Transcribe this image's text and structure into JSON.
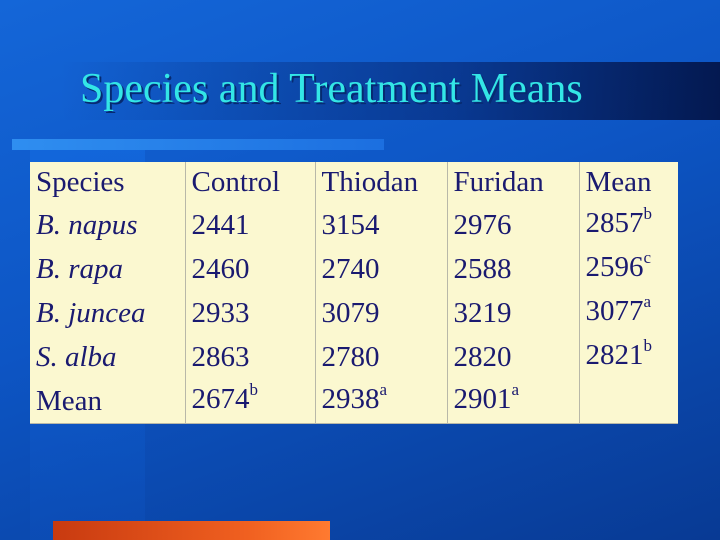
{
  "slide": {
    "title": "Species and Treatment Means"
  },
  "table": {
    "headers": [
      "Species",
      "Control",
      "Thiodan",
      "Furidan",
      "Mean"
    ],
    "rows": [
      {
        "species": "B. napus",
        "control": "2441",
        "thiodan": "3154",
        "furidan": "2976",
        "mean": "2857",
        "mean_sup": "b"
      },
      {
        "species": "B. rapa",
        "control": "2460",
        "thiodan": "2740",
        "furidan": "2588",
        "mean": "2596",
        "mean_sup": "c"
      },
      {
        "species": "B. juncea",
        "control": "2933",
        "thiodan": "3079",
        "furidan": "3219",
        "mean": "3077",
        "mean_sup": "a"
      },
      {
        "species": "S. alba",
        "control": "2863",
        "thiodan": "2780",
        "furidan": "2820",
        "mean": "2821",
        "mean_sup": "b"
      }
    ],
    "mean_row": {
      "label": "Mean",
      "control": "2674",
      "control_sup": "b",
      "thiodan": "2938",
      "thiodan_sup": "a",
      "furidan": "2901",
      "furidan_sup": "a",
      "mean": ""
    }
  },
  "colors": {
    "background": "#0d55c4",
    "title": "#33e6e6",
    "table_bg": "#fbf8d0",
    "table_text": "#1a1a70",
    "accent_orange": "#f06020"
  }
}
